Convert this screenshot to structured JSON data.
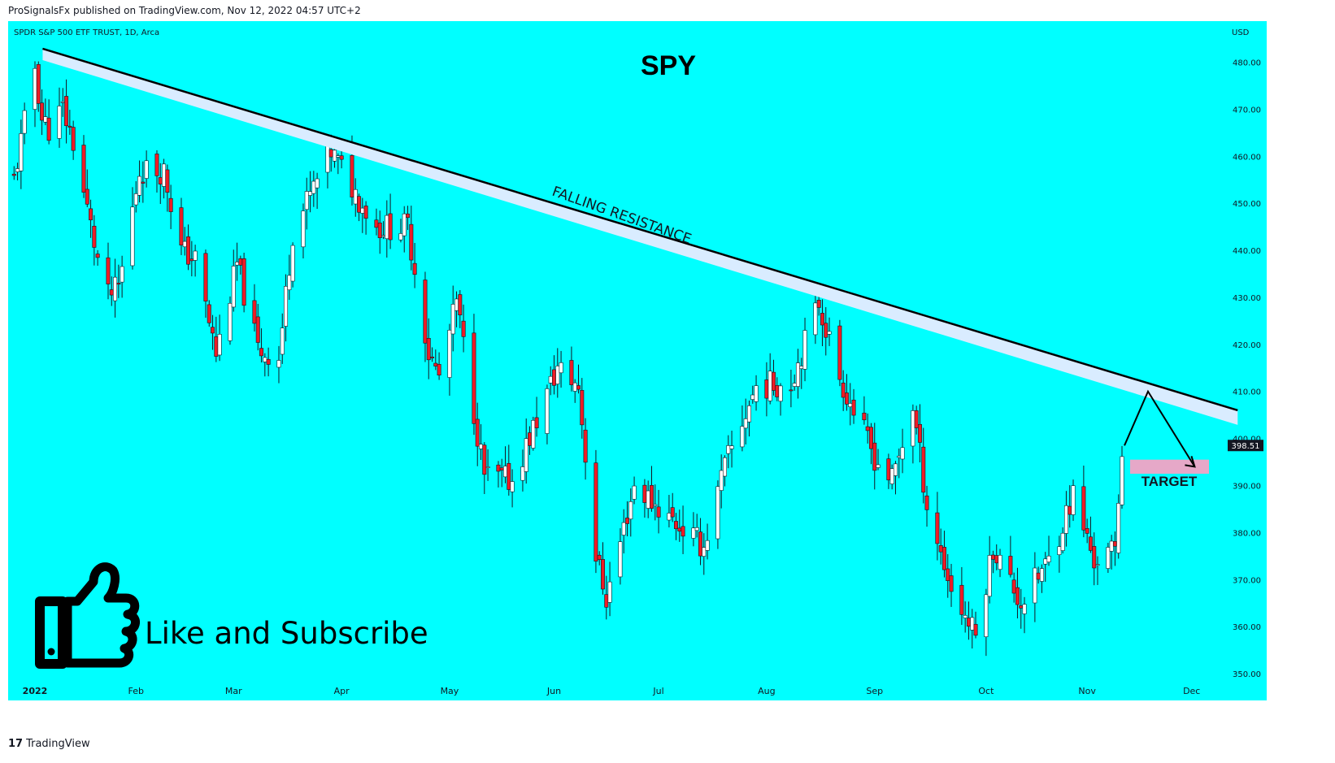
{
  "header": {
    "published_by": "ProSignalsFx published on TradingView.com, Nov 12, 2022 04:57 UTC+2"
  },
  "footer": {
    "brand": "TradingView",
    "logo_glyph": "17"
  },
  "colors": {
    "background": "#00ffff",
    "bull": "#ffffff",
    "bear": "#ee1c25",
    "wick": "#131722",
    "resistance_band": "#d9ecff",
    "target_box": "#e6a8c8",
    "price_badge": "#131722"
  },
  "icons": {
    "thumbs_up": "thumbs-up-icon",
    "tv_logo": "tradingview-logo-icon"
  },
  "chart_data": {
    "type": "candlestick",
    "symbol_line": "SPDR S&P 500 ETF TRUST, 1D, Arca",
    "title": "SPY",
    "currency": "USD",
    "last_price": "398.51",
    "ylim": [
      345,
      487
    ],
    "y_ticks": [
      "480.00",
      "470.00",
      "460.00",
      "450.00",
      "440.00",
      "430.00",
      "420.00",
      "410.00",
      "400.00",
      "390.00",
      "380.00",
      "370.00",
      "360.00",
      "350.00"
    ],
    "x_ticks": [
      "2022",
      "Feb",
      "Mar",
      "Apr",
      "May",
      "Jun",
      "Jul",
      "Aug",
      "Sep",
      "Oct",
      "Nov",
      "Dec"
    ],
    "annotations": {
      "resistance_label": "FALLING RESISTANCE",
      "target_label": "TARGET",
      "cta": "Like and Subscribe"
    },
    "resistance_line": {
      "start": {
        "date": "2022-01-01",
        "price": 482
      },
      "end": {
        "date": "2022-12-03",
        "price": 406
      }
    },
    "target_zone": {
      "from_price": 392.5,
      "to_price": 395.5
    },
    "projection": [
      {
        "date": "2022-11-11",
        "price": 398.5
      },
      {
        "date": "2022-11-18",
        "price": 410
      },
      {
        "date": "2022-11-30",
        "price": 394
      }
    ],
    "keypoints": [
      {
        "date": "2021-12-28",
        "price": 455
      },
      {
        "date": "2022-01-03",
        "price": 479
      },
      {
        "date": "2022-01-05",
        "price": 468
      },
      {
        "date": "2022-01-07",
        "price": 466
      },
      {
        "date": "2022-01-11",
        "price": 470
      },
      {
        "date": "2022-01-14",
        "price": 463
      },
      {
        "date": "2022-01-21",
        "price": 438
      },
      {
        "date": "2022-01-24",
        "price": 430
      },
      {
        "date": "2022-01-27",
        "price": 432
      },
      {
        "date": "2022-02-02",
        "price": 457
      },
      {
        "date": "2022-02-09",
        "price": 457
      },
      {
        "date": "2022-02-14",
        "price": 440
      },
      {
        "date": "2022-02-18",
        "price": 438
      },
      {
        "date": "2022-02-24",
        "price": 418
      },
      {
        "date": "2022-03-02",
        "price": 437
      },
      {
        "date": "2022-03-08",
        "price": 419
      },
      {
        "date": "2022-03-14",
        "price": 417
      },
      {
        "date": "2022-03-18",
        "price": 444
      },
      {
        "date": "2022-03-29",
        "price": 461
      },
      {
        "date": "2022-04-06",
        "price": 451
      },
      {
        "date": "2022-04-11",
        "price": 445
      },
      {
        "date": "2022-04-20",
        "price": 445
      },
      {
        "date": "2022-04-26",
        "price": 418
      },
      {
        "date": "2022-04-29",
        "price": 413
      },
      {
        "date": "2022-05-04",
        "price": 429
      },
      {
        "date": "2022-05-12",
        "price": 392
      },
      {
        "date": "2022-05-20",
        "price": 391
      },
      {
        "date": "2022-06-02",
        "price": 415
      },
      {
        "date": "2022-06-08",
        "price": 411
      },
      {
        "date": "2022-06-13",
        "price": 375
      },
      {
        "date": "2022-06-16",
        "price": 366
      },
      {
        "date": "2022-06-24",
        "price": 390
      },
      {
        "date": "2022-07-06",
        "price": 382
      },
      {
        "date": "2022-07-14",
        "price": 377
      },
      {
        "date": "2022-07-20",
        "price": 394
      },
      {
        "date": "2022-07-29",
        "price": 411
      },
      {
        "date": "2022-08-08",
        "price": 412
      },
      {
        "date": "2022-08-16",
        "price": 429
      },
      {
        "date": "2022-08-22",
        "price": 413
      },
      {
        "date": "2022-08-26",
        "price": 406
      },
      {
        "date": "2022-09-01",
        "price": 396
      },
      {
        "date": "2022-09-06",
        "price": 391
      },
      {
        "date": "2022-09-12",
        "price": 407
      },
      {
        "date": "2022-09-16",
        "price": 386
      },
      {
        "date": "2022-09-23",
        "price": 368
      },
      {
        "date": "2022-09-30",
        "price": 358
      },
      {
        "date": "2022-10-05",
        "price": 377
      },
      {
        "date": "2022-10-13",
        "price": 365
      },
      {
        "date": "2022-10-21",
        "price": 374
      },
      {
        "date": "2022-10-28",
        "price": 388
      },
      {
        "date": "2022-11-03",
        "price": 374
      },
      {
        "date": "2022-11-09",
        "price": 376
      },
      {
        "date": "2022-11-11",
        "price": 398.5
      }
    ]
  }
}
